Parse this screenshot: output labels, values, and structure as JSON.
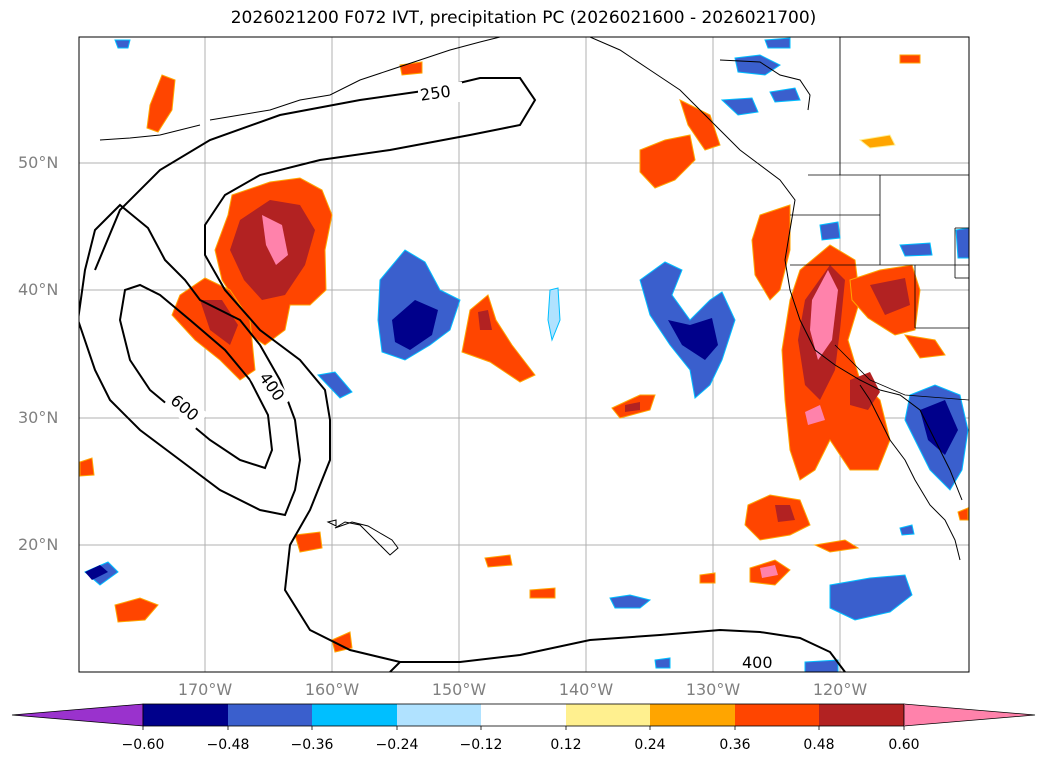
{
  "title": "2026021200 F072 IVT, precipitation PC (2026021600 - 2026021700)",
  "lat_labels": [
    "50°N",
    "40°N",
    "30°N",
    "20°N"
  ],
  "lon_labels": [
    "170°W",
    "160°W",
    "150°W",
    "140°W",
    "130°W",
    "120°W"
  ],
  "contour_labels": [
    "250",
    "400",
    "600",
    "400"
  ],
  "colorbar": {
    "ticks": [
      "−0.60",
      "−0.48",
      "−0.36",
      "−0.24",
      "−0.12",
      "0.12",
      "0.24",
      "0.36",
      "0.48",
      "0.60"
    ],
    "colors": [
      "#9a32cd",
      "#00008b",
      "#3a5fcd",
      "#00bfff",
      "#b0e2ff",
      "#ffffff",
      "#fff08f",
      "#ffa500",
      "#ff4500",
      "#b22222",
      "#ff82ab"
    ]
  }
}
